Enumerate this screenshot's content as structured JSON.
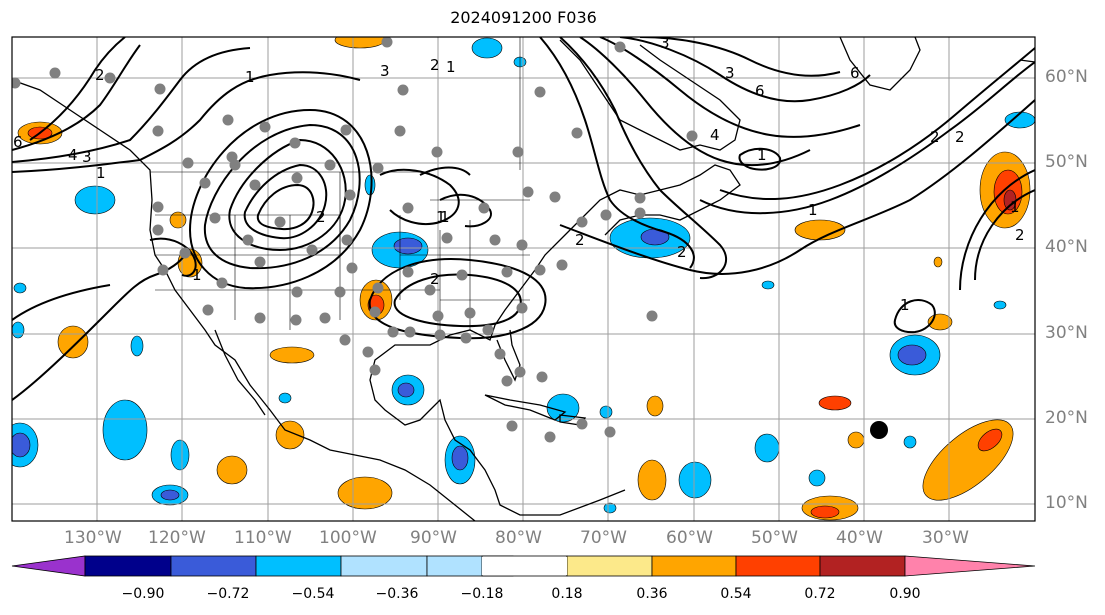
{
  "title": "2024091200 F036",
  "lat_labels": [
    "60°N",
    "50°N",
    "40°N",
    "30°N",
    "20°N",
    "10°N"
  ],
  "lon_labels": [
    "130°W",
    "120°W",
    "110°W",
    "100°W",
    "90°W",
    "80°W",
    "70°W",
    "60°W",
    "50°W",
    "40°W",
    "30°W"
  ],
  "colorbar": {
    "ticks": [
      "−0.90",
      "−0.72",
      "−0.54",
      "−0.36",
      "−0.18",
      "0.18",
      "0.36",
      "0.54",
      "0.72",
      "0.90"
    ],
    "colors": [
      "#9a32cd",
      "#00008b",
      "#3a5bd9",
      "#00bfff",
      "#b0e2ff",
      "#ffffff",
      "#fce98a",
      "#ffa500",
      "#ff4000",
      "#b22222",
      "#ff82ab"
    ]
  },
  "contour_labels": [
    "1",
    "2",
    "3",
    "4",
    "6",
    "1",
    "2",
    "3",
    "1",
    "2",
    "1",
    "2",
    "1",
    "1",
    "1",
    "2",
    "1",
    "2",
    "6",
    "3",
    "3",
    "4",
    "6",
    "2",
    "2",
    "1",
    "1",
    "2"
  ],
  "marker": {
    "lat": 18.8,
    "lon": -38.5
  }
}
